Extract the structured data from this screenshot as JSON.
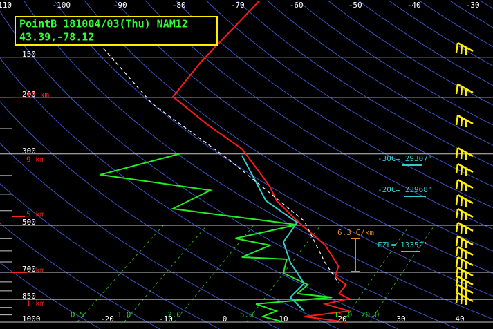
{
  "header": {
    "title": "PointB 181004/03(Thu) NAM12",
    "location": "43.39,-78.12"
  },
  "chart_data": {
    "type": "skewt",
    "pressure_levels": [
      150,
      200,
      300,
      500,
      700,
      850,
      1000
    ],
    "minor_pressure_levels": [
      250,
      350,
      400,
      450,
      550,
      600,
      650,
      750,
      800,
      900,
      950
    ],
    "top_temperature_labels": [
      -110,
      -100,
      -90,
      -80,
      -70,
      -60,
      -50,
      -40,
      -30
    ],
    "bottom_temperature_labels": [
      -20,
      -10,
      0,
      10,
      20,
      30,
      40
    ],
    "mixing_ratio_lines": [
      0.5,
      {
        "value": 1,
        "label": "1.0"
      },
      {
        "value": 2,
        "label": "2.0"
      },
      {
        "value": 5,
        "label": "5.0"
      },
      {
        "value": 15,
        "label": "15.0"
      },
      {
        "value": 20,
        "label": "20.0"
      }
    ],
    "dry_adiabats": [
      250,
      260,
      270,
      280,
      290,
      300,
      310,
      320,
      330,
      340,
      350,
      360,
      370,
      380,
      390,
      400,
      410,
      420,
      430,
      440,
      450,
      460,
      470
    ],
    "series": [
      {
        "color": "#ff1a1a",
        "p": [
          100,
          155,
          199,
          243,
          289,
          319,
          379,
          419,
          485,
          577,
          670,
          721,
          765,
          816,
          845,
          879,
          924,
          961,
          1000
        ],
        "values": [
          -67.4,
          -63.4,
          -60.2,
          -48.0,
          -36.6,
          -31.7,
          -23.2,
          -18.9,
          -10.7,
          -0.4,
          6.6,
          8.4,
          12.1,
          13.0,
          15.8,
          13.0,
          18.7,
          12.3,
          20.6
        ]
      },
      {
        "color": "#22ee22",
        "p": [
          299,
          348,
          389,
          444,
          498,
          549,
          577,
          628,
          637,
          704,
          765,
          816,
          837,
          879,
          924,
          961,
          1000
        ],
        "values": [
          -45.9,
          -54.8,
          -32.5,
          -34.7,
          -9.9,
          -17.3,
          -9.8,
          -11.9,
          -3.8,
          -1.2,
          5.6,
          5.9,
          12.6,
          1.2,
          6.3,
          5.2,
          10.0
        ]
      },
      {
        "color": "#33cccc",
        "p": [
          303,
          419,
          490,
          563,
          653,
          758,
          837,
          924
        ],
        "values": [
          -35.1,
          -20.7,
          -10.4,
          -8.3,
          -2.4,
          4.7,
          5.5,
          11.0
        ]
      },
      {
        "color": "#ffffff",
        "dashed": true,
        "p": [
          141,
          209,
          311,
          485,
          653,
          758
        ],
        "values": [
          -83.0,
          -62.2,
          -36.6,
          -9.5,
          3.5,
          10.6
        ]
      }
    ],
    "height_markers": [
      {
        "label": "12 km",
        "p": 200
      },
      {
        "label": "9 km",
        "p": 318
      },
      {
        "label": "5 km",
        "p": 470
      },
      {
        "label": "3 km",
        "p": 702
      },
      {
        "label": "1 km",
        "p": 890
      }
    ],
    "annotations": {
      "minus30": "-30C= 29307'",
      "minus20": "-20C= 23968'",
      "freezing": "FZL= 13352'",
      "lapse_rate": "6.3 C/km"
    }
  }
}
